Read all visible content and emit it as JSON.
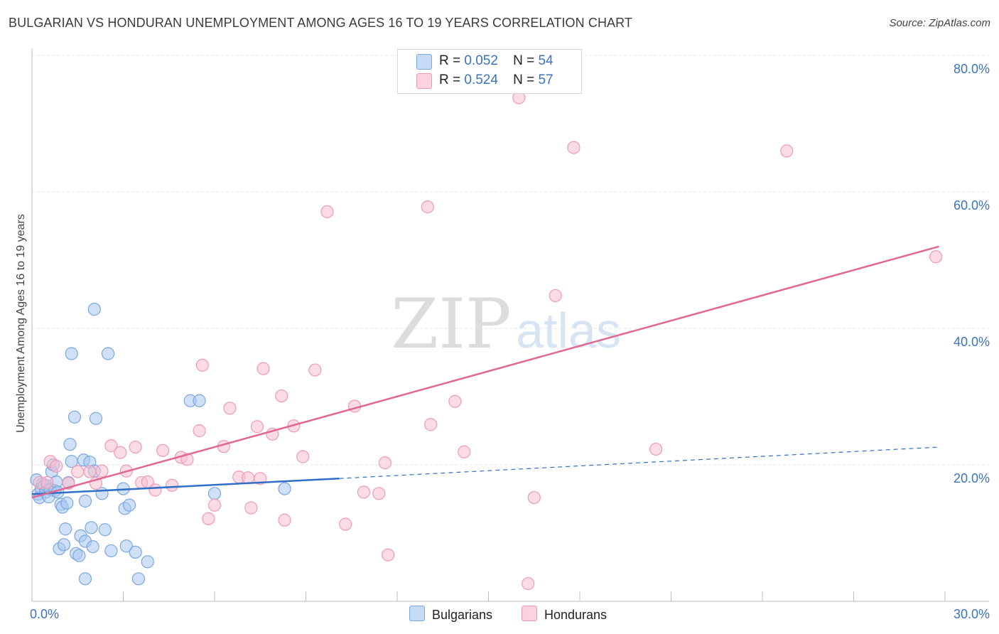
{
  "title": "BULGARIAN VS HONDURAN UNEMPLOYMENT AMONG AGES 16 TO 19 YEARS CORRELATION CHART",
  "source": "Source: ZipAtlas.com",
  "watermark": {
    "zip": "ZIP",
    "atlas": "atlas"
  },
  "legend": {
    "bulgarians": {
      "r_label": "R =",
      "r_value": "0.052",
      "n_label": "N =",
      "n_value": "54"
    },
    "hondurans": {
      "r_label": "R =",
      "r_value": "0.524",
      "n_label": "N =",
      "n_value": "57"
    }
  },
  "bottom_legend": {
    "bulgarians": "Bulgarians",
    "hondurans": "Hondurans"
  },
  "colors": {
    "blue_fill": "#a9c8f0",
    "blue_stroke": "#7aa7e0",
    "blue_line": "#2f6fc5",
    "pink_fill": "#f7bfd0",
    "pink_stroke": "#ef9ab5",
    "pink_line": "#e0678f",
    "tick_text": "#3b73c4",
    "grid": "#e4e4e4"
  },
  "chart_data": {
    "type": "scatter",
    "title": "BULGARIAN VS HONDURAN UNEMPLOYMENT AMONG AGES 16 TO 19 YEARS CORRELATION CHART",
    "xlabel": "",
    "ylabel": "Unemployment Among Ages 16 to 19 years",
    "xlim": [
      0,
      30
    ],
    "ylim": [
      0,
      80
    ],
    "x_tick_labels": [
      "0.0%",
      "30.0%"
    ],
    "y_ticks": [
      20,
      40,
      60,
      80
    ],
    "y_tick_labels": [
      "20.0%",
      "40.0%",
      "60.0%",
      "80.0%"
    ],
    "grid": true,
    "series": [
      {
        "name": "Bulgarians",
        "r": 0.052,
        "n": 54,
        "trend": {
          "x0": 0,
          "y0": 15.7,
          "x_solid_end": 10.1,
          "y_solid_end": 18.0,
          "x1": 29.8,
          "y1": 22.6
        },
        "points": [
          [
            0.15,
            17.8
          ],
          [
            0.2,
            15.7
          ],
          [
            0.25,
            15.2
          ],
          [
            0.3,
            16.5
          ],
          [
            0.35,
            17.2
          ],
          [
            0.4,
            16.9
          ],
          [
            0.45,
            16.0
          ],
          [
            0.5,
            16.9
          ],
          [
            0.6,
            16.4
          ],
          [
            0.65,
            19.0
          ],
          [
            0.7,
            20.0
          ],
          [
            0.75,
            16.2
          ],
          [
            0.8,
            17.5
          ],
          [
            0.9,
            7.7
          ],
          [
            0.95,
            14.2
          ],
          [
            1.0,
            13.8
          ],
          [
            1.05,
            8.3
          ],
          [
            1.1,
            10.6
          ],
          [
            1.2,
            17.4
          ],
          [
            1.25,
            23.0
          ],
          [
            1.3,
            36.3
          ],
          [
            1.3,
            20.5
          ],
          [
            1.4,
            27.0
          ],
          [
            1.45,
            7.0
          ],
          [
            1.55,
            6.7
          ],
          [
            1.6,
            9.6
          ],
          [
            1.7,
            20.7
          ],
          [
            1.75,
            8.8
          ],
          [
            1.75,
            14.7
          ],
          [
            1.9,
            20.4
          ],
          [
            1.95,
            10.8
          ],
          [
            2.0,
            8.0
          ],
          [
            2.05,
            19.1
          ],
          [
            2.1,
            26.8
          ],
          [
            2.05,
            42.8
          ],
          [
            2.3,
            15.8
          ],
          [
            2.4,
            10.5
          ],
          [
            2.5,
            36.3
          ],
          [
            2.6,
            7.4
          ],
          [
            3.0,
            16.5
          ],
          [
            3.05,
            13.6
          ],
          [
            3.1,
            8.1
          ],
          [
            3.2,
            14.1
          ],
          [
            3.4,
            7.2
          ],
          [
            3.5,
            3.3
          ],
          [
            3.8,
            5.8
          ],
          [
            5.2,
            29.4
          ],
          [
            5.5,
            29.4
          ],
          [
            6.0,
            15.8
          ],
          [
            8.3,
            16.5
          ],
          [
            0.55,
            15.3
          ],
          [
            1.75,
            3.3
          ],
          [
            0.85,
            16.0
          ],
          [
            1.15,
            14.4
          ]
        ]
      },
      {
        "name": "Hondurans",
        "r": 0.524,
        "n": 57,
        "trend": {
          "x0": 0,
          "y0": 15.2,
          "x1": 29.8,
          "y1": 52.0
        },
        "points": [
          [
            0.25,
            17.4
          ],
          [
            0.5,
            17.4
          ],
          [
            0.6,
            20.5
          ],
          [
            0.8,
            19.8
          ],
          [
            1.2,
            17.3
          ],
          [
            1.5,
            19.0
          ],
          [
            1.9,
            19.0
          ],
          [
            2.1,
            17.3
          ],
          [
            2.3,
            19.1
          ],
          [
            2.6,
            22.8
          ],
          [
            2.9,
            21.8
          ],
          [
            3.1,
            19.1
          ],
          [
            3.4,
            22.6
          ],
          [
            3.6,
            17.4
          ],
          [
            3.8,
            17.5
          ],
          [
            4.05,
            16.3
          ],
          [
            4.3,
            22.1
          ],
          [
            4.6,
            17.0
          ],
          [
            4.9,
            21.1
          ],
          [
            5.1,
            20.8
          ],
          [
            5.5,
            25.0
          ],
          [
            5.6,
            34.6
          ],
          [
            5.8,
            12.1
          ],
          [
            6.0,
            14.1
          ],
          [
            6.3,
            22.7
          ],
          [
            6.5,
            28.3
          ],
          [
            6.8,
            18.2
          ],
          [
            7.1,
            18.1
          ],
          [
            7.2,
            13.7
          ],
          [
            7.4,
            25.6
          ],
          [
            7.6,
            34.1
          ],
          [
            7.9,
            24.5
          ],
          [
            8.2,
            30.1
          ],
          [
            8.3,
            11.9
          ],
          [
            8.6,
            25.7
          ],
          [
            8.9,
            21.2
          ],
          [
            9.3,
            33.9
          ],
          [
            9.7,
            57.1
          ],
          [
            10.3,
            11.3
          ],
          [
            10.6,
            28.6
          ],
          [
            10.9,
            16.0
          ],
          [
            11.4,
            15.8
          ],
          [
            11.6,
            20.3
          ],
          [
            11.7,
            6.8
          ],
          [
            13.0,
            57.8
          ],
          [
            13.1,
            25.9
          ],
          [
            13.9,
            29.3
          ],
          [
            14.2,
            21.9
          ],
          [
            16.0,
            73.8
          ],
          [
            16.3,
            2.6
          ],
          [
            16.5,
            15.2
          ],
          [
            17.2,
            44.8
          ],
          [
            17.8,
            66.5
          ],
          [
            20.5,
            22.3
          ],
          [
            24.8,
            66.0
          ],
          [
            29.7,
            50.5
          ],
          [
            7.5,
            18.0
          ]
        ]
      }
    ]
  }
}
